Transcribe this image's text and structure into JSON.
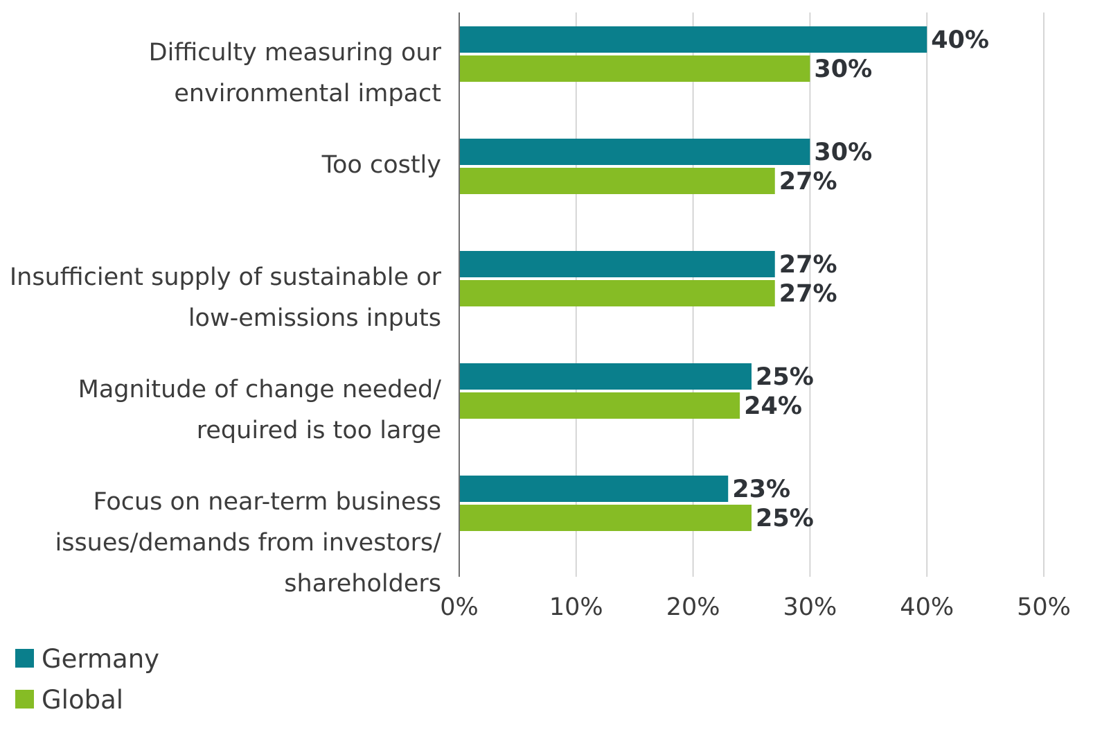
{
  "chart_data": {
    "type": "bar",
    "orientation": "horizontal",
    "categories": [
      [
        "Difficulty measuring our",
        "environmental impact"
      ],
      [
        "Too costly"
      ],
      [
        "Insufficient supply of sustainable or",
        "low-emissions inputs"
      ],
      [
        "Magnitude of change needed/",
        "required is too large"
      ],
      [
        "Focus on near-term business",
        "issues/demands from investors/",
        "shareholders"
      ]
    ],
    "series": [
      {
        "name": "Germany",
        "color": "#0a7f8c",
        "values": [
          40,
          30,
          27,
          25,
          23
        ],
        "labels": [
          "40%",
          "30%",
          "27%",
          "25%",
          "23%"
        ]
      },
      {
        "name": "Global",
        "color": "#86bc25",
        "values": [
          30,
          27,
          27,
          24,
          25
        ],
        "labels": [
          "30%",
          "27%",
          "27%",
          "24%",
          "25%"
        ]
      }
    ],
    "xlim": [
      0,
      50
    ],
    "ticks": [
      {
        "value": 0,
        "label": "0%"
      },
      {
        "value": 10,
        "label": "10%"
      },
      {
        "value": 20,
        "label": "20%"
      },
      {
        "value": 30,
        "label": "30%"
      },
      {
        "value": 40,
        "label": "40%"
      },
      {
        "value": 50,
        "label": "50%"
      }
    ],
    "grid": true,
    "legend_position": "bottom-left"
  }
}
